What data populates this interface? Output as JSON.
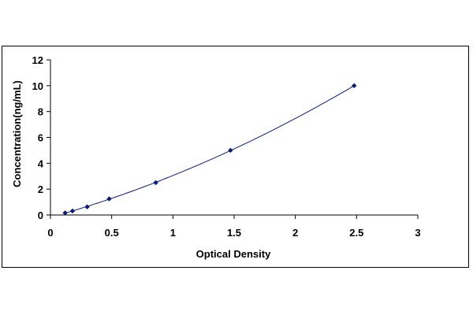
{
  "chart_data": {
    "type": "scatter",
    "title": "",
    "xlabel": "Optical Density",
    "ylabel": "Concentration(ng/mL)",
    "xlim": [
      0,
      3
    ],
    "ylim": [
      0,
      12
    ],
    "x_ticks": [
      0,
      0.5,
      1,
      1.5,
      2,
      2.5,
      3
    ],
    "x_tick_labels": [
      "0",
      "0.5",
      "1",
      "1.5",
      "2",
      "2.5",
      "3"
    ],
    "y_ticks": [
      0,
      2,
      4,
      6,
      8,
      10,
      12
    ],
    "y_tick_labels": [
      "0",
      "2",
      "4",
      "6",
      "8",
      "10",
      "12"
    ],
    "grid": false,
    "legend": "none",
    "series": [
      {
        "x": [
          0.12,
          0.18,
          0.3,
          0.48,
          0.86,
          1.47,
          2.48
        ],
        "y": [
          0.16,
          0.31,
          0.63,
          1.25,
          2.5,
          5,
          10
        ],
        "marker": "diamond",
        "trendline": "polynomial",
        "color": "#0a1a7a"
      }
    ]
  }
}
